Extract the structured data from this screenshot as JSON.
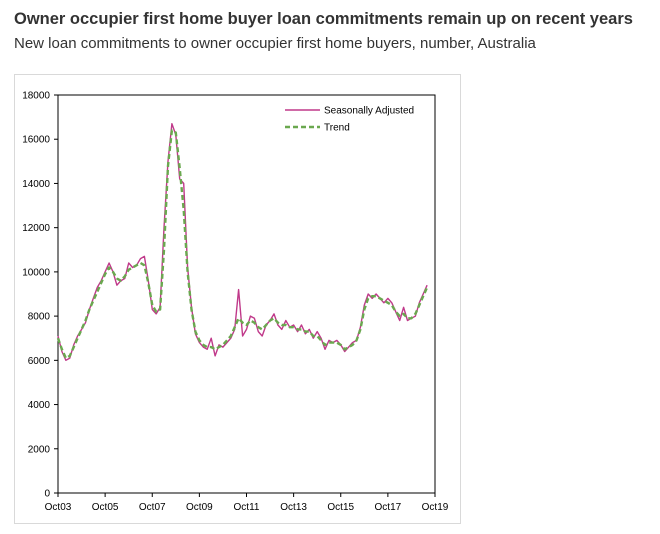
{
  "header": {
    "title": "Owner occupier first home buyer loan commitments remain up on recent years",
    "subtitle": "New loan commitments to owner occupier first home buyers, number, Australia"
  },
  "chart_data": {
    "type": "line",
    "title": "Owner occupier first home buyer loan commitments remain up on recent years",
    "subtitle": "New loan commitments to owner occupier first home buyers, number, Australia",
    "xlabel": "",
    "ylabel": "",
    "x_tick_labels": [
      "Oct03",
      "Oct05",
      "Oct07",
      "Oct09",
      "Oct11",
      "Oct13",
      "Oct15",
      "Oct17",
      "Oct19"
    ],
    "y_tick_labels": [
      "0",
      "2000",
      "4000",
      "6000",
      "8000",
      "10000",
      "12000",
      "14000",
      "16000",
      "18000"
    ],
    "ylim": [
      0,
      18000
    ],
    "xlim": [
      "2003-10",
      "2019-10"
    ],
    "grid": false,
    "legend_position": "top-right",
    "series": [
      {
        "name": "Seasonally Adjusted",
        "color": "#c0398a",
        "style": "solid",
        "points": [
          [
            "2003-10",
            7100
          ],
          [
            "2003-12",
            6400
          ],
          [
            "2004-02",
            6000
          ],
          [
            "2004-04",
            6100
          ],
          [
            "2004-06",
            6700
          ],
          [
            "2004-08",
            7100
          ],
          [
            "2004-10",
            7400
          ],
          [
            "2004-12",
            7700
          ],
          [
            "2005-02",
            8300
          ],
          [
            "2005-04",
            8800
          ],
          [
            "2005-06",
            9300
          ],
          [
            "2005-08",
            9600
          ],
          [
            "2005-10",
            10000
          ],
          [
            "2005-12",
            10400
          ],
          [
            "2006-02",
            10000
          ],
          [
            "2006-04",
            9400
          ],
          [
            "2006-06",
            9600
          ],
          [
            "2006-08",
            9700
          ],
          [
            "2006-10",
            10400
          ],
          [
            "2006-12",
            10200
          ],
          [
            "2007-02",
            10300
          ],
          [
            "2007-04",
            10600
          ],
          [
            "2007-06",
            10700
          ],
          [
            "2007-08",
            9600
          ],
          [
            "2007-10",
            8300
          ],
          [
            "2007-12",
            8100
          ],
          [
            "2008-02",
            8400
          ],
          [
            "2008-04",
            12000
          ],
          [
            "2008-06",
            15000
          ],
          [
            "2008-08",
            16700
          ],
          [
            "2008-10",
            16200
          ],
          [
            "2008-12",
            14200
          ],
          [
            "2009-02",
            14000
          ],
          [
            "2009-04",
            10200
          ],
          [
            "2009-06",
            8400
          ],
          [
            "2009-08",
            7200
          ],
          [
            "2009-10",
            6800
          ],
          [
            "2009-12",
            6600
          ],
          [
            "2010-02",
            6500
          ],
          [
            "2010-04",
            7000
          ],
          [
            "2010-06",
            6200
          ],
          [
            "2010-08",
            6700
          ],
          [
            "2010-10",
            6600
          ],
          [
            "2010-12",
            6800
          ],
          [
            "2011-02",
            7000
          ],
          [
            "2011-04",
            7400
          ],
          [
            "2011-06",
            9200
          ],
          [
            "2011-08",
            7100
          ],
          [
            "2011-10",
            7400
          ],
          [
            "2011-12",
            8000
          ],
          [
            "2012-02",
            7900
          ],
          [
            "2012-04",
            7300
          ],
          [
            "2012-06",
            7100
          ],
          [
            "2012-08",
            7600
          ],
          [
            "2012-10",
            7800
          ],
          [
            "2012-12",
            8100
          ],
          [
            "2013-02",
            7600
          ],
          [
            "2013-04",
            7400
          ],
          [
            "2013-06",
            7800
          ],
          [
            "2013-08",
            7500
          ],
          [
            "2013-10",
            7600
          ],
          [
            "2013-12",
            7300
          ],
          [
            "2014-02",
            7600
          ],
          [
            "2014-04",
            7200
          ],
          [
            "2014-06",
            7400
          ],
          [
            "2014-08",
            7000
          ],
          [
            "2014-10",
            7300
          ],
          [
            "2014-12",
            7000
          ],
          [
            "2015-02",
            6500
          ],
          [
            "2015-04",
            6900
          ],
          [
            "2015-06",
            6800
          ],
          [
            "2015-08",
            6900
          ],
          [
            "2015-10",
            6700
          ],
          [
            "2015-12",
            6400
          ],
          [
            "2016-02",
            6600
          ],
          [
            "2016-04",
            6800
          ],
          [
            "2016-06",
            6900
          ],
          [
            "2016-08",
            7500
          ],
          [
            "2016-10",
            8500
          ],
          [
            "2016-12",
            9000
          ],
          [
            "2017-02",
            8800
          ],
          [
            "2017-04",
            9000
          ],
          [
            "2017-06",
            8800
          ],
          [
            "2017-08",
            8600
          ],
          [
            "2017-10",
            8800
          ],
          [
            "2017-12",
            8600
          ],
          [
            "2018-02",
            8200
          ],
          [
            "2018-04",
            7800
          ],
          [
            "2018-06",
            8400
          ],
          [
            "2018-08",
            7800
          ],
          [
            "2018-10",
            7900
          ],
          [
            "2018-12",
            8000
          ],
          [
            "2019-02",
            8600
          ],
          [
            "2019-04",
            9000
          ],
          [
            "2019-06",
            9400
          ]
        ]
      },
      {
        "name": "Trend",
        "color": "#6aa84f",
        "style": "dashed",
        "points": [
          [
            "2003-10",
            7000
          ],
          [
            "2003-12",
            6500
          ],
          [
            "2004-02",
            6100
          ],
          [
            "2004-04",
            6200
          ],
          [
            "2004-06",
            6600
          ],
          [
            "2004-08",
            7000
          ],
          [
            "2004-10",
            7400
          ],
          [
            "2004-12",
            7800
          ],
          [
            "2005-02",
            8300
          ],
          [
            "2005-04",
            8700
          ],
          [
            "2005-06",
            9100
          ],
          [
            "2005-08",
            9500
          ],
          [
            "2005-10",
            9900
          ],
          [
            "2005-12",
            10200
          ],
          [
            "2006-02",
            10000
          ],
          [
            "2006-04",
            9700
          ],
          [
            "2006-06",
            9600
          ],
          [
            "2006-08",
            9800
          ],
          [
            "2006-10",
            10100
          ],
          [
            "2006-12",
            10200
          ],
          [
            "2007-02",
            10300
          ],
          [
            "2007-04",
            10400
          ],
          [
            "2007-06",
            10300
          ],
          [
            "2007-08",
            9500
          ],
          [
            "2007-10",
            8500
          ],
          [
            "2007-12",
            8200
          ],
          [
            "2008-02",
            8300
          ],
          [
            "2008-04",
            11000
          ],
          [
            "2008-06",
            14800
          ],
          [
            "2008-08",
            16400
          ],
          [
            "2008-10",
            16300
          ],
          [
            "2008-12",
            14700
          ],
          [
            "2009-02",
            12800
          ],
          [
            "2009-04",
            10000
          ],
          [
            "2009-06",
            8300
          ],
          [
            "2009-08",
            7300
          ],
          [
            "2009-10",
            6900
          ],
          [
            "2009-12",
            6700
          ],
          [
            "2010-02",
            6600
          ],
          [
            "2010-04",
            6600
          ],
          [
            "2010-06",
            6500
          ],
          [
            "2010-08",
            6600
          ],
          [
            "2010-10",
            6700
          ],
          [
            "2010-12",
            6900
          ],
          [
            "2011-02",
            7100
          ],
          [
            "2011-04",
            7500
          ],
          [
            "2011-06",
            7900
          ],
          [
            "2011-08",
            7700
          ],
          [
            "2011-10",
            7600
          ],
          [
            "2011-12",
            7800
          ],
          [
            "2012-02",
            7700
          ],
          [
            "2012-04",
            7500
          ],
          [
            "2012-06",
            7400
          ],
          [
            "2012-08",
            7600
          ],
          [
            "2012-10",
            7800
          ],
          [
            "2012-12",
            7900
          ],
          [
            "2013-02",
            7700
          ],
          [
            "2013-04",
            7600
          ],
          [
            "2013-06",
            7600
          ],
          [
            "2013-08",
            7500
          ],
          [
            "2013-10",
            7500
          ],
          [
            "2013-12",
            7400
          ],
          [
            "2014-02",
            7400
          ],
          [
            "2014-04",
            7300
          ],
          [
            "2014-06",
            7300
          ],
          [
            "2014-08",
            7100
          ],
          [
            "2014-10",
            7100
          ],
          [
            "2014-12",
            6900
          ],
          [
            "2015-02",
            6700
          ],
          [
            "2015-04",
            6800
          ],
          [
            "2015-06",
            6800
          ],
          [
            "2015-08",
            6800
          ],
          [
            "2015-10",
            6700
          ],
          [
            "2015-12",
            6500
          ],
          [
            "2016-02",
            6600
          ],
          [
            "2016-04",
            6700
          ],
          [
            "2016-06",
            6900
          ],
          [
            "2016-08",
            7400
          ],
          [
            "2016-10",
            8300
          ],
          [
            "2016-12",
            8800
          ],
          [
            "2017-02",
            8900
          ],
          [
            "2017-04",
            8900
          ],
          [
            "2017-06",
            8800
          ],
          [
            "2017-08",
            8700
          ],
          [
            "2017-10",
            8600
          ],
          [
            "2017-12",
            8500
          ],
          [
            "2018-02",
            8200
          ],
          [
            "2018-04",
            8000
          ],
          [
            "2018-06",
            8100
          ],
          [
            "2018-08",
            7900
          ],
          [
            "2018-10",
            7900
          ],
          [
            "2018-12",
            8100
          ],
          [
            "2019-02",
            8500
          ],
          [
            "2019-04",
            8900
          ],
          [
            "2019-06",
            9300
          ]
        ]
      }
    ]
  }
}
